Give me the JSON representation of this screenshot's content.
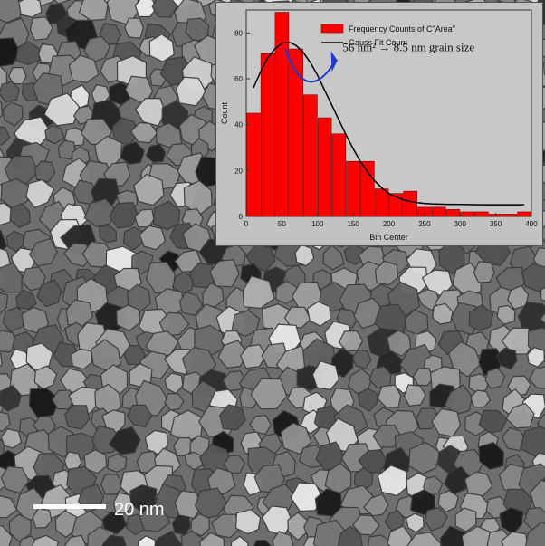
{
  "image": {
    "scale_bar_label": "20 nm",
    "colors": {
      "background": "#7a7a7a",
      "inset": "#c2c2c2",
      "bar": "#ff0000",
      "fit": "#000000",
      "annotation_arrow": "#1a3cc8"
    }
  },
  "chart_data": {
    "type": "bar",
    "xlabel": "Bin Center",
    "ylabel": "Count",
    "xlim": [
      0,
      400
    ],
    "ylim": [
      0,
      90
    ],
    "xticks": [
      0,
      50,
      100,
      150,
      200,
      250,
      300,
      350,
      400
    ],
    "yticks": [
      0,
      20,
      40,
      60,
      80
    ],
    "bin_width": 20,
    "x": [
      20,
      40,
      60,
      80,
      100,
      120,
      140,
      160,
      180,
      200,
      220,
      240,
      260,
      280,
      300,
      320,
      340,
      360,
      380,
      400
    ],
    "series": [
      {
        "name": "Frequency Counts of C\"Area\"",
        "type": "bar",
        "color": "#ff0000",
        "values": [
          45,
          71,
          89,
          73,
          53,
          43,
          36,
          24,
          24,
          12,
          10,
          11,
          4,
          4,
          3,
          2,
          2,
          1,
          1,
          2
        ]
      },
      {
        "name": "Gauss Fit Count",
        "type": "line",
        "color": "#000000",
        "x": [
          10,
          20,
          30,
          40,
          50,
          60,
          70,
          80,
          90,
          100,
          110,
          120,
          130,
          140,
          150,
          160,
          170,
          180,
          190,
          200,
          210,
          220,
          230,
          240,
          250,
          260,
          280,
          300,
          330,
          360,
          390
        ],
        "values": [
          56,
          63,
          69,
          73,
          75.5,
          76,
          74.5,
          71.5,
          67,
          61.5,
          55,
          48.5,
          42,
          35.5,
          29.5,
          24,
          19.5,
          15.5,
          12.5,
          10,
          8.5,
          7.3,
          6.5,
          6,
          5.7,
          5.5,
          5.3,
          5.2,
          5.1,
          5.1,
          5.1
        ]
      }
    ],
    "legend_position": "top-right",
    "annotation": "56 nm² → 8.5 nm grain size"
  }
}
